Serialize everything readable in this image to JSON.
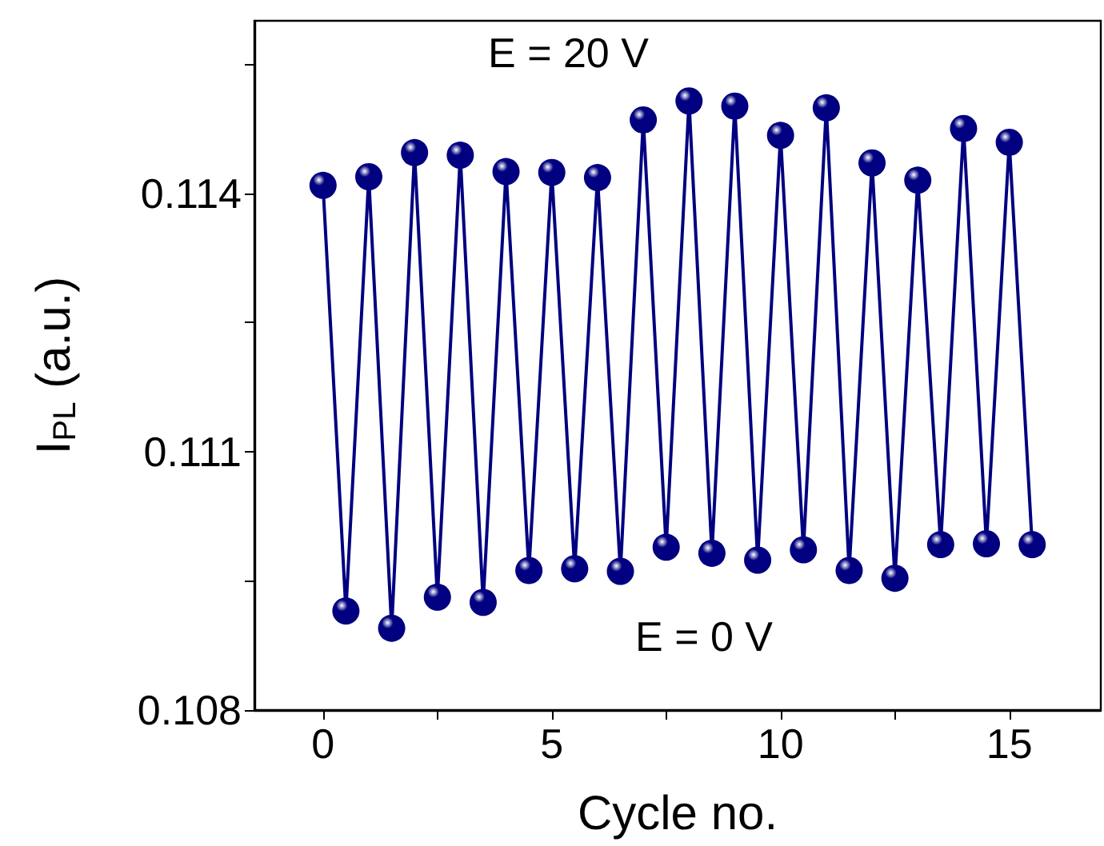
{
  "chart_data": {
    "type": "line",
    "xlabel": "Cycle no.",
    "ylabel": "I$_{PL}$ (a.u.)",
    "annotations": [
      "E = 20 V",
      "E = 0 V"
    ],
    "x": [
      0,
      0.5,
      1,
      1.5,
      2,
      2.5,
      3,
      3.5,
      4,
      4.5,
      5,
      5.5,
      6,
      6.5,
      7,
      7.5,
      8,
      8.5,
      9,
      9.5,
      10,
      10.5,
      11,
      11.5,
      12,
      12.5,
      13,
      13.5,
      14,
      14.5,
      15,
      15.5
    ],
    "series": [
      {
        "color": "#000080",
        "values": [
          0.11409,
          0.10915,
          0.11419,
          0.10895,
          0.11447,
          0.10931,
          0.11444,
          0.10925,
          0.11425,
          0.10962,
          0.11424,
          0.10964,
          0.11418,
          0.10961,
          0.11485,
          0.10989,
          0.11507,
          0.10982,
          0.11501,
          0.10974,
          0.11467,
          0.10986,
          0.11499,
          0.10962,
          0.11435,
          0.10953,
          0.11415,
          0.10992,
          0.11475,
          0.10993,
          0.11459,
          0.10992
        ]
      }
    ],
    "xlim": [
      -1.5,
      17
    ],
    "xticks": [
      0,
      {
        "value": 2.5,
        "label": null
      },
      5,
      {
        "value": 7.5,
        "label": null
      },
      10,
      {
        "value": 12.5,
        "label": null
      },
      15
    ],
    "ylim": [
      0.108,
      0.116
    ],
    "yticks": [
      0.108,
      {
        "value": 0.1095,
        "label": null
      },
      0.111,
      {
        "value": 0.1125,
        "label": null
      },
      0.114,
      {
        "value": 0.1155,
        "label": null
      }
    ],
    "marker": "circle",
    "line_style": "solid",
    "grid": false
  }
}
